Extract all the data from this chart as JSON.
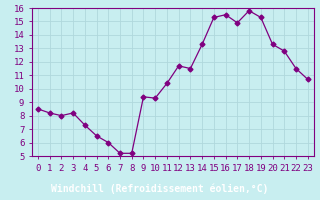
{
  "x": [
    0,
    1,
    2,
    3,
    4,
    5,
    6,
    7,
    8,
    9,
    10,
    11,
    12,
    13,
    14,
    15,
    16,
    17,
    18,
    19,
    20,
    21,
    22,
    23
  ],
  "y": [
    8.5,
    8.2,
    8.0,
    8.2,
    7.3,
    6.5,
    6.0,
    5.2,
    5.2,
    9.4,
    9.3,
    10.4,
    11.7,
    11.5,
    13.3,
    15.3,
    15.5,
    14.9,
    15.8,
    15.3,
    13.3,
    12.8,
    11.5,
    10.7
  ],
  "line_color": "#800080",
  "marker": "D",
  "marker_size": 2.5,
  "background_color": "#c8eef0",
  "grid_color": "#b0d8dc",
  "xlabel": "Windchill (Refroidissement éolien,°C)",
  "xlabel_fontsize": 7,
  "tick_fontsize": 6.5,
  "ylim": [
    5,
    16
  ],
  "yticks": [
    5,
    6,
    7,
    8,
    9,
    10,
    11,
    12,
    13,
    14,
    15,
    16
  ],
  "xticks": [
    0,
    1,
    2,
    3,
    4,
    5,
    6,
    7,
    8,
    9,
    10,
    11,
    12,
    13,
    14,
    15,
    16,
    17,
    18,
    19,
    20,
    21,
    22,
    23
  ],
  "xlabel_bg": "#800080",
  "xlabel_fg": "#ffffff",
  "spine_color": "#800080",
  "tick_color": "#800080"
}
